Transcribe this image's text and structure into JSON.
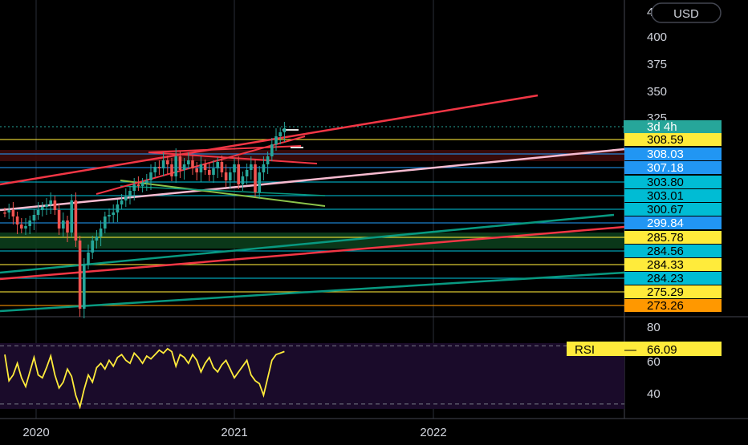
{
  "toolbar": {
    "currency_label": "USD"
  },
  "chart_data": [
    {
      "type": "candlestick",
      "title": "",
      "currency": "USD",
      "price_axis_ticks": [
        400,
        375,
        350,
        325
      ],
      "price_axis_ticks_partial": [
        "4"
      ],
      "time_axis_labels": [
        "2020",
        "2021",
        "2022"
      ],
      "countdown_label": "3d 4h",
      "price_labels": [
        {
          "value": "308.59",
          "bg": "#ffeb3b",
          "fg": "#000000"
        },
        {
          "value": "308.03",
          "bg": "#2196f3",
          "fg": "#ffffff"
        },
        {
          "value": "307.18",
          "bg": "#2196f3",
          "fg": "#ffffff"
        },
        {
          "value": "303.80",
          "bg": "#00bcd4",
          "fg": "#000000"
        },
        {
          "value": "303.01",
          "bg": "#00bcd4",
          "fg": "#000000"
        },
        {
          "value": "300.67",
          "bg": "#00bcd4",
          "fg": "#000000"
        },
        {
          "value": "299.84",
          "bg": "#2196f3",
          "fg": "#ffffff"
        },
        {
          "value": "285.78",
          "bg": "#ffeb3b",
          "fg": "#000000"
        },
        {
          "value": "284.56",
          "bg": "#00bcd4",
          "fg": "#000000"
        },
        {
          "value": "284.33",
          "bg": "#ffeb3b",
          "fg": "#000000"
        },
        {
          "value": "284.23",
          "bg": "#00bcd4",
          "fg": "#000000"
        },
        {
          "value": "275.29",
          "bg": "#ffeb3b",
          "fg": "#000000"
        },
        {
          "value": "273.26",
          "bg": "#ff9800",
          "fg": "#000000"
        }
      ],
      "colors": {
        "up": "#26a69a",
        "down": "#ef5350",
        "trend_red": "#f23645",
        "trend_teal": "#089981",
        "trend_pink": "#f8bbd0",
        "level_yellow": "#ffeb3b",
        "level_blue": "#2196f3",
        "level_cyan": "#00bcd4",
        "zone_green": "#0b3d1c",
        "zone_red": "#3d0b0b"
      }
    },
    {
      "type": "line",
      "series": [
        {
          "name": "RSI",
          "color": "#ffeb3b"
        }
      ],
      "value_label": "66.09",
      "ylim": [
        20,
        90
      ],
      "y_ticks": [
        80,
        60,
        40
      ],
      "bands": [
        30,
        70
      ],
      "last_value": 66.09
    }
  ]
}
